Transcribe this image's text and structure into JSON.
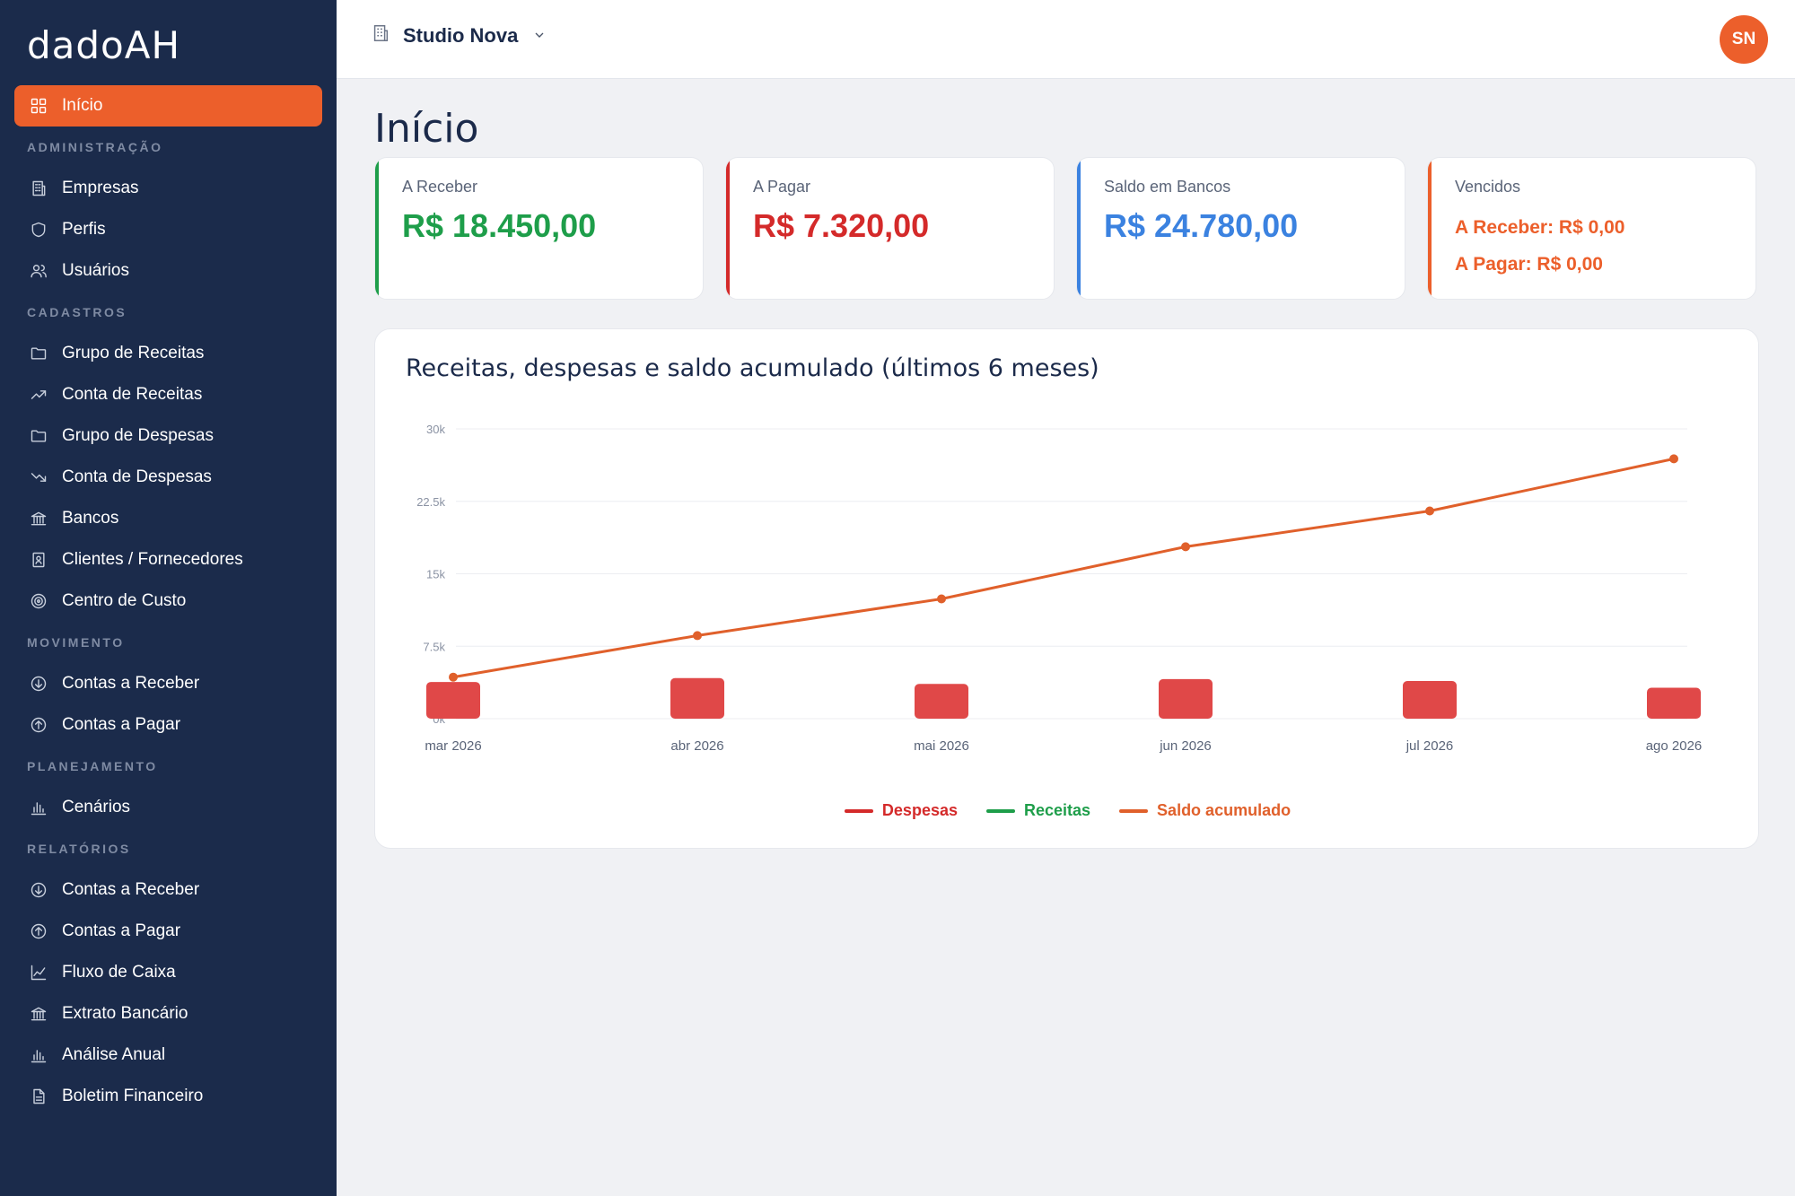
{
  "app": {
    "logo": "dadoAH"
  },
  "sidebar": {
    "active": {
      "label": "Início",
      "icon": "grid-icon"
    },
    "sections": [
      {
        "title": "ADMINISTRAÇÃO",
        "items": [
          {
            "label": "Empresas",
            "icon": "building-icon"
          },
          {
            "label": "Perfis",
            "icon": "shield-icon"
          },
          {
            "label": "Usuários",
            "icon": "users-icon"
          }
        ]
      },
      {
        "title": "CADASTROS",
        "items": [
          {
            "label": "Grupo de Receitas",
            "icon": "folder-icon"
          },
          {
            "label": "Conta de Receitas",
            "icon": "trending-up-icon"
          },
          {
            "label": "Grupo de Despesas",
            "icon": "folder-icon"
          },
          {
            "label": "Conta de Despesas",
            "icon": "trending-down-icon"
          },
          {
            "label": "Bancos",
            "icon": "bank-icon"
          },
          {
            "label": "Clientes / Fornecedores",
            "icon": "contact-icon"
          },
          {
            "label": "Centro de Custo",
            "icon": "target-icon"
          }
        ]
      },
      {
        "title": "MOVIMENTO",
        "items": [
          {
            "label": "Contas a Receber",
            "icon": "arrow-down-circle-icon"
          },
          {
            "label": "Contas a Pagar",
            "icon": "arrow-up-circle-icon"
          }
        ]
      },
      {
        "title": "PLANEJAMENTO",
        "items": [
          {
            "label": "Cenários",
            "icon": "bar-chart-icon"
          }
        ]
      },
      {
        "title": "RELATÓRIOS",
        "items": [
          {
            "label": "Contas a Receber",
            "icon": "arrow-down-circle-icon"
          },
          {
            "label": "Contas a Pagar",
            "icon": "arrow-up-circle-icon"
          },
          {
            "label": "Fluxo de Caixa",
            "icon": "line-chart-icon"
          },
          {
            "label": "Extrato Bancário",
            "icon": "bank-icon"
          },
          {
            "label": "Análise Anual",
            "icon": "bar-chart-icon"
          },
          {
            "label": "Boletim Financeiro",
            "icon": "document-icon"
          }
        ]
      }
    ]
  },
  "header": {
    "company": "Studio Nova",
    "avatar": "SN"
  },
  "page": {
    "title": "Início"
  },
  "cards": {
    "receber": {
      "label": "A Receber",
      "value": "R$ 18.450,00",
      "color": "#1e9e4a"
    },
    "pagar": {
      "label": "A Pagar",
      "value": "R$ 7.320,00",
      "color": "#d42a2a"
    },
    "bancos": {
      "label": "Saldo em Bancos",
      "value": "R$ 24.780,00",
      "color": "#3b82e0"
    },
    "vencidos": {
      "label": "Vencidos",
      "line1": "A Receber: R$ 0,00",
      "line2": "A Pagar: R$ 0,00",
      "color": "#ec5f2b"
    }
  },
  "chart_data": {
    "type": "bar",
    "title": "Receitas, despesas e saldo acumulado (últimos 6 meses)",
    "categories": [
      "mar 2026",
      "abr 2026",
      "mai 2026",
      "jun 2026",
      "jul 2026",
      "ago 2026"
    ],
    "y_ticks": [
      "0k",
      "7.5k",
      "15k",
      "22.5k",
      "30k"
    ],
    "ylim": [
      0,
      30000
    ],
    "grid": true,
    "legend_position": "bottom",
    "series": [
      {
        "name": "Despesas",
        "type": "bar",
        "color": "#d42a2a",
        "values": [
          3800,
          4200,
          3600,
          4100,
          3900,
          3200
        ]
      },
      {
        "name": "Receitas",
        "type": "bar",
        "color": "#1e9e4a",
        "values": [
          0,
          0,
          0,
          0,
          0,
          0
        ]
      },
      {
        "name": "Saldo acumulado",
        "type": "line",
        "color": "#e0602b",
        "values": [
          4300,
          8600,
          12400,
          17800,
          21500,
          26900
        ]
      }
    ]
  }
}
